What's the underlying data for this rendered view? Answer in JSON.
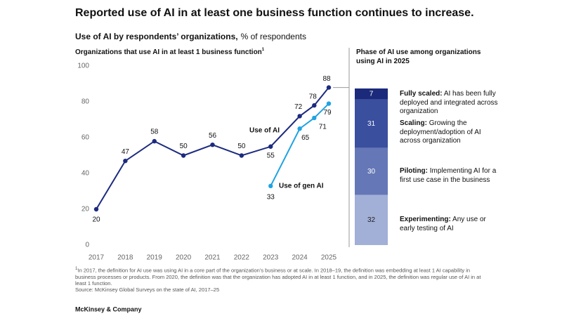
{
  "title": "Reported use of AI in at least one business function continues to increase.",
  "subtitle_bold": "Use of AI by respondents’ organizations,",
  "subtitle_rest": "% of respondents",
  "chart_data": [
    {
      "type": "line",
      "title": "Organizations that use AI in at least 1 business function",
      "title_note": "1",
      "xlim": [
        2017,
        2025
      ],
      "xticks": [
        2017,
        2018,
        2019,
        2020,
        2021,
        2022,
        2023,
        2024,
        2025
      ],
      "ylim": [
        0,
        100
      ],
      "yticks": [
        0,
        20,
        40,
        60,
        80,
        100
      ],
      "grid": false,
      "series": [
        {
          "name": "Use of AI",
          "color": "#1c2b7f",
          "x": [
            2017,
            2018,
            2019,
            2020,
            2021,
            2022,
            2023,
            2024,
            2024.5,
            2025
          ],
          "values": [
            20,
            47,
            58,
            50,
            56,
            50,
            55,
            72,
            78,
            88
          ]
        },
        {
          "name": "Use of gen AI",
          "color": "#1fa3e3",
          "x": [
            2023,
            2024,
            2024.5,
            2025
          ],
          "values": [
            33,
            65,
            71,
            79
          ]
        }
      ]
    },
    {
      "type": "stacked_bar",
      "title": "Phase of AI use among organizations using AI in 2025",
      "ylim": [
        0,
        100
      ],
      "series": [
        {
          "name": "Fully scaled:",
          "description": "AI has been fully deployed and integrated across organization",
          "color": "#1b2a7b",
          "values": [
            7
          ]
        },
        {
          "name": "Scaling:",
          "description": "Growing the deployment/adoption of AI across organization",
          "color": "#3a4f9e",
          "values": [
            31
          ]
        },
        {
          "name": "Piloting:",
          "description": "Implementing AI for a first use case in the business",
          "color": "#6577b6",
          "values": [
            30
          ]
        },
        {
          "name": "Experimenting:",
          "description": "Any use or early testing of AI",
          "color": "#a2afd7",
          "values": [
            32
          ]
        }
      ]
    }
  ],
  "footnote": "In 2017, the definition for AI use was using AI in a core part of the organization’s business or at scale. In 2018–19, the definition was embedding at least 1 AI capability in business processes or products. From 2020, the definition was that the organization has adopted AI in at least 1 function, and in 2025, the definition was regular use of AI in at least 1 function.",
  "footnote_mark": "1",
  "source": "Source: McKinsey Global Surveys on the state of AI, 2017–25",
  "brand": "McKinsey & Company"
}
